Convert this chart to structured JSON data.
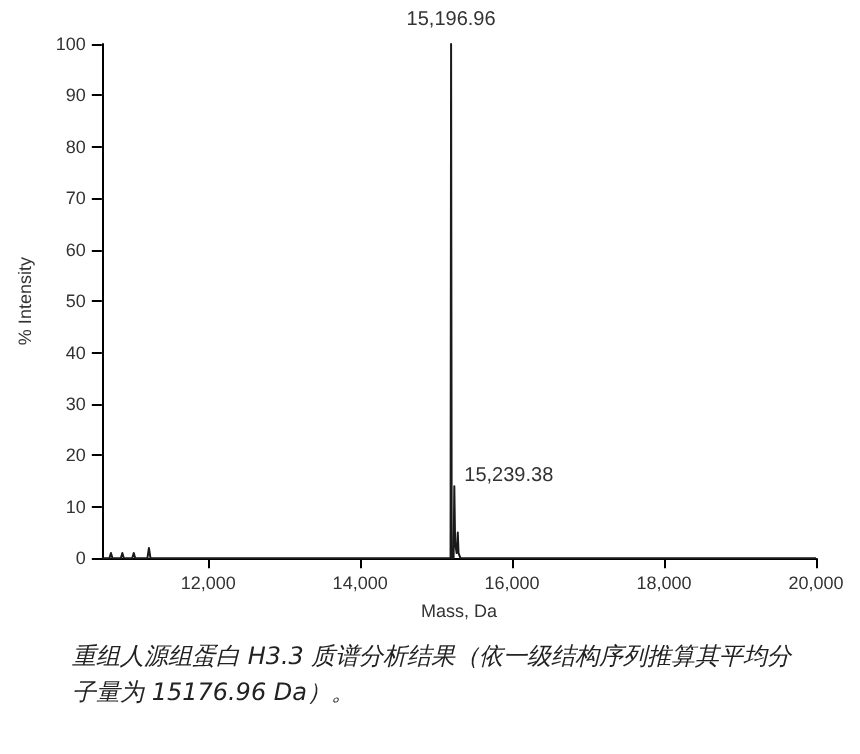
{
  "chart_data": {
    "type": "line",
    "xlabel": "Mass, Da",
    "ylabel": "% Intensity",
    "series": [
      {
        "color": "#1a1a1a",
        "x": [
          10600,
          10700,
          10720,
          10740,
          10850,
          10870,
          10890,
          11000,
          11020,
          11040,
          11200,
          11220,
          11240,
          15150,
          15190,
          15196.96,
          15205,
          15230,
          15239.38,
          15250,
          15270,
          15285,
          15295,
          15320,
          20000
        ],
        "values": [
          0,
          0,
          1,
          0,
          0,
          1,
          0,
          0,
          1,
          0,
          0,
          2,
          0,
          0,
          0,
          100,
          0,
          0,
          14,
          3,
          1,
          5,
          1,
          0,
          0
        ]
      }
    ],
    "xlim": [
      10600,
      20000
    ],
    "xticks": [
      {
        "value": 12000,
        "label": "12,000"
      },
      {
        "value": 14000,
        "label": "14,000"
      },
      {
        "value": 16000,
        "label": "16,000"
      },
      {
        "value": 18000,
        "label": "18,000"
      },
      {
        "value": 20000,
        "label": "20,000"
      }
    ],
    "ylim": [
      0,
      100
    ],
    "yticks": [
      0,
      10,
      20,
      30,
      40,
      50,
      60,
      70,
      80,
      90,
      100
    ],
    "grid": false,
    "marker": "none",
    "line_style": "solid",
    "annotations": [
      {
        "text": "15,196.96",
        "x": 15196.96,
        "y": 100
      },
      {
        "text": "15,239.38",
        "x": 15239.38,
        "y": 14
      },
      "重组人源组蛋白  H3.3  质谱分析结果（依一级结构序列推算其平均分子量为 15176.96 Da）。"
    ]
  }
}
